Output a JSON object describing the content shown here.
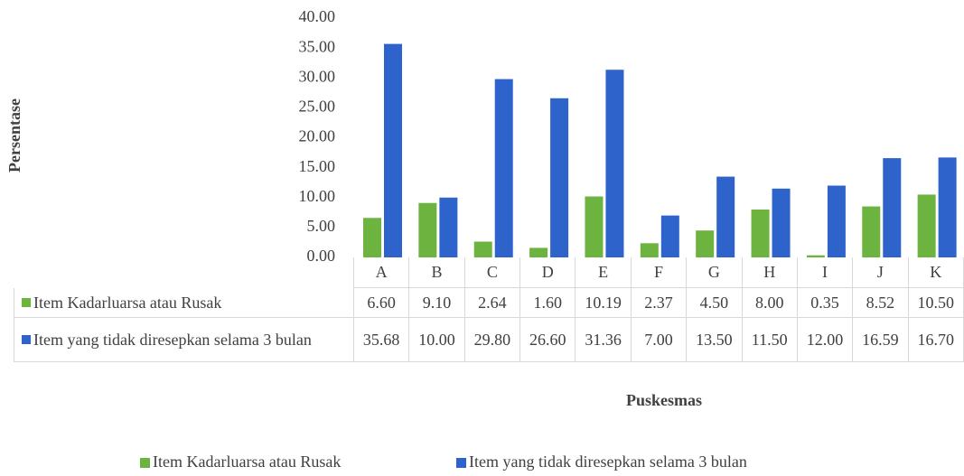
{
  "chart_data": {
    "type": "bar",
    "categories": [
      "A",
      "B",
      "C",
      "D",
      "E",
      "F",
      "G",
      "H",
      "I",
      "J",
      "K"
    ],
    "series": [
      {
        "name": "Item Kadarluarsa atau Rusak",
        "color": "#6cb33f",
        "values": [
          6.6,
          9.1,
          2.64,
          1.6,
          10.19,
          2.37,
          4.5,
          8.0,
          0.35,
          8.52,
          10.5
        ],
        "value_labels": [
          "6.60",
          "9.10",
          "2.64",
          "1.60",
          "10.19",
          "2.37",
          "4.50",
          "8.00",
          "0.35",
          "8.52",
          "10.50"
        ]
      },
      {
        "name": "Item yang tidak diresepkan selama 3 bulan",
        "color": "#2f63cc",
        "values": [
          35.68,
          10.0,
          29.8,
          26.6,
          31.36,
          7.0,
          13.5,
          11.5,
          12.0,
          16.59,
          16.7
        ],
        "value_labels": [
          "35.68",
          "10.00",
          "29.80",
          "26.60",
          "31.36",
          "7.00",
          "13.50",
          "11.50",
          "12.00",
          "16.59",
          "16.70"
        ]
      }
    ],
    "y_label": "Persentase",
    "x_label": "Puskesmas",
    "ylim": [
      0,
      40
    ],
    "yticks": [
      {
        "value": 0,
        "label": "0.00"
      },
      {
        "value": 5,
        "label": "5.00"
      },
      {
        "value": 10,
        "label": "10.00"
      },
      {
        "value": 15,
        "label": "15.00"
      },
      {
        "value": 20,
        "label": "20.00"
      },
      {
        "value": 25,
        "label": "25.00"
      },
      {
        "value": 30,
        "label": "30.00"
      },
      {
        "value": 35,
        "label": "35.00"
      },
      {
        "value": 40,
        "label": "40.00"
      }
    ],
    "grid": false,
    "legend": "bottom",
    "data_table": true
  }
}
